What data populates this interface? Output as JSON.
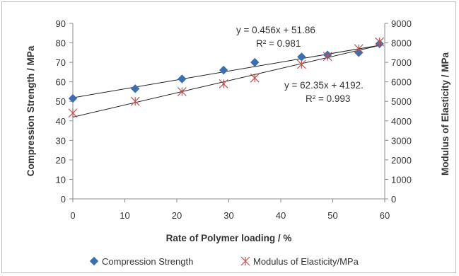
{
  "chart_data": {
    "type": "scatter",
    "xlabel": "Rate of Polymer loading / %",
    "ylabel_left": "Compression Strength / MPa",
    "ylabel_right": "Modulus of Elasticity / MPa",
    "xlim": [
      0,
      60
    ],
    "ylim_left": [
      0,
      90
    ],
    "ylim_right": [
      0,
      9000
    ],
    "x_ticks": [
      0,
      10,
      20,
      30,
      40,
      50,
      60
    ],
    "y_ticks_left": [
      0,
      10,
      20,
      30,
      40,
      50,
      60,
      70,
      80,
      90
    ],
    "y_ticks_right": [
      0,
      1000,
      2000,
      3000,
      4000,
      5000,
      6000,
      7000,
      8000,
      9000
    ],
    "grid": false,
    "legend_position": "bottom",
    "series": [
      {
        "name": "Compression Strength",
        "axis": "left",
        "marker": "diamond",
        "color": "#3a6fb0",
        "x": [
          0,
          12,
          21,
          29,
          35,
          44,
          49,
          55,
          59
        ],
        "y": [
          51.5,
          56.5,
          61.5,
          66,
          70,
          72.8,
          73.8,
          75,
          79.5
        ],
        "trendline": {
          "slope": 0.456,
          "intercept": 51.86,
          "equation": "y = 0.456x + 51.86",
          "r2": "R² = 0.981"
        }
      },
      {
        "name": "Modulus of Elasticity/MPa",
        "axis": "right",
        "marker": "asterisk",
        "color": "#c0504d",
        "x": [
          0,
          12,
          21,
          29,
          35,
          44,
          49,
          55,
          59
        ],
        "y": [
          4400,
          5000,
          5500,
          5900,
          6200,
          6900,
          7300,
          7700,
          8050
        ],
        "trendline": {
          "slope": 62.35,
          "intercept": 4192,
          "equation": "y = 62.35x + 4192.",
          "r2": "R² = 0.993"
        }
      }
    ]
  }
}
